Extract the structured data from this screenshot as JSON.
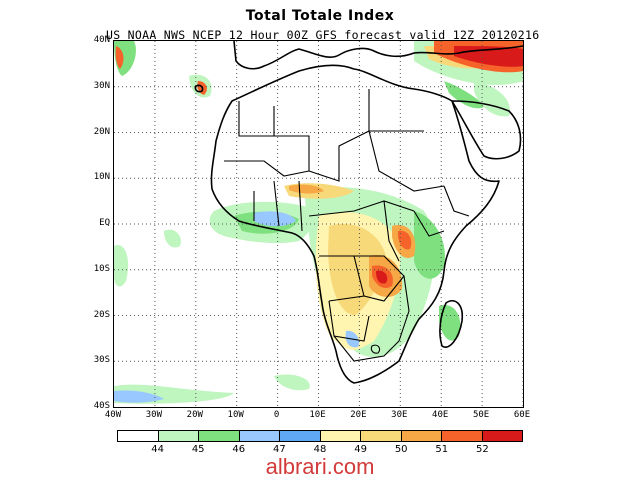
{
  "title": "Total Totale Index",
  "subtitle": "US NOAA NWS NCEP 12 Hour 00Z GFS forecast valid 12Z 20120216",
  "watermark": "albrari.com",
  "lat_labels": [
    "40N",
    "30N",
    "20N",
    "10N",
    "EQ",
    "10S",
    "20S",
    "30S",
    "40S"
  ],
  "lon_labels": [
    "40W",
    "30W",
    "20W",
    "10W",
    "0",
    "10E",
    "20E",
    "30E",
    "40E",
    "50E",
    "60E"
  ],
  "legend": {
    "colors": [
      "#ffffff",
      "#bff5bf",
      "#7fe07f",
      "#98c8ff",
      "#5fa8f5",
      "#fff5b0",
      "#f7d97a",
      "#f5a845",
      "#f5622a",
      "#d91a1a"
    ],
    "labels": [
      "44",
      "45",
      "46",
      "47",
      "48",
      "49",
      "50",
      "51",
      "52"
    ]
  },
  "colors": {
    "coastline": "#000000",
    "grid": "#555555",
    "watermark": "#d23b3b"
  }
}
